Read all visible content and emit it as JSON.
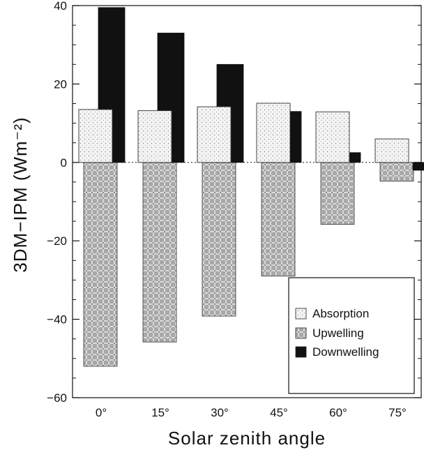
{
  "chart_data": {
    "type": "bar",
    "xlabel": "Solar zenith angle",
    "ylabel": "3DM−IPM (Wm⁻²)",
    "ylim": [
      -60,
      40
    ],
    "yticks": [
      40,
      20,
      0,
      -20,
      -40,
      -60
    ],
    "yticks_display": [
      "40",
      "20",
      "0",
      "−20",
      "−40",
      "−60"
    ],
    "categories": [
      "0°",
      "15°",
      "30°",
      "45°",
      "60°",
      "75°"
    ],
    "series": [
      {
        "name": "Absorption",
        "values": [
          13.5,
          13.2,
          14.2,
          15.1,
          12.9,
          6.0
        ],
        "color": "#eeeeee",
        "pattern": "dots"
      },
      {
        "name": "Upwelling",
        "values": [
          -52.0,
          -45.8,
          -39.2,
          -29.0,
          -15.8,
          -4.8
        ],
        "color": "#9a9a9a",
        "pattern": "grid"
      },
      {
        "name": "Downwelling",
        "values": [
          39.5,
          33.0,
          25.0,
          13.0,
          2.5,
          -2.0
        ],
        "color": "#111111",
        "pattern": "solid"
      }
    ],
    "legend_position": "bottom-right",
    "zero_line": "dotted"
  }
}
